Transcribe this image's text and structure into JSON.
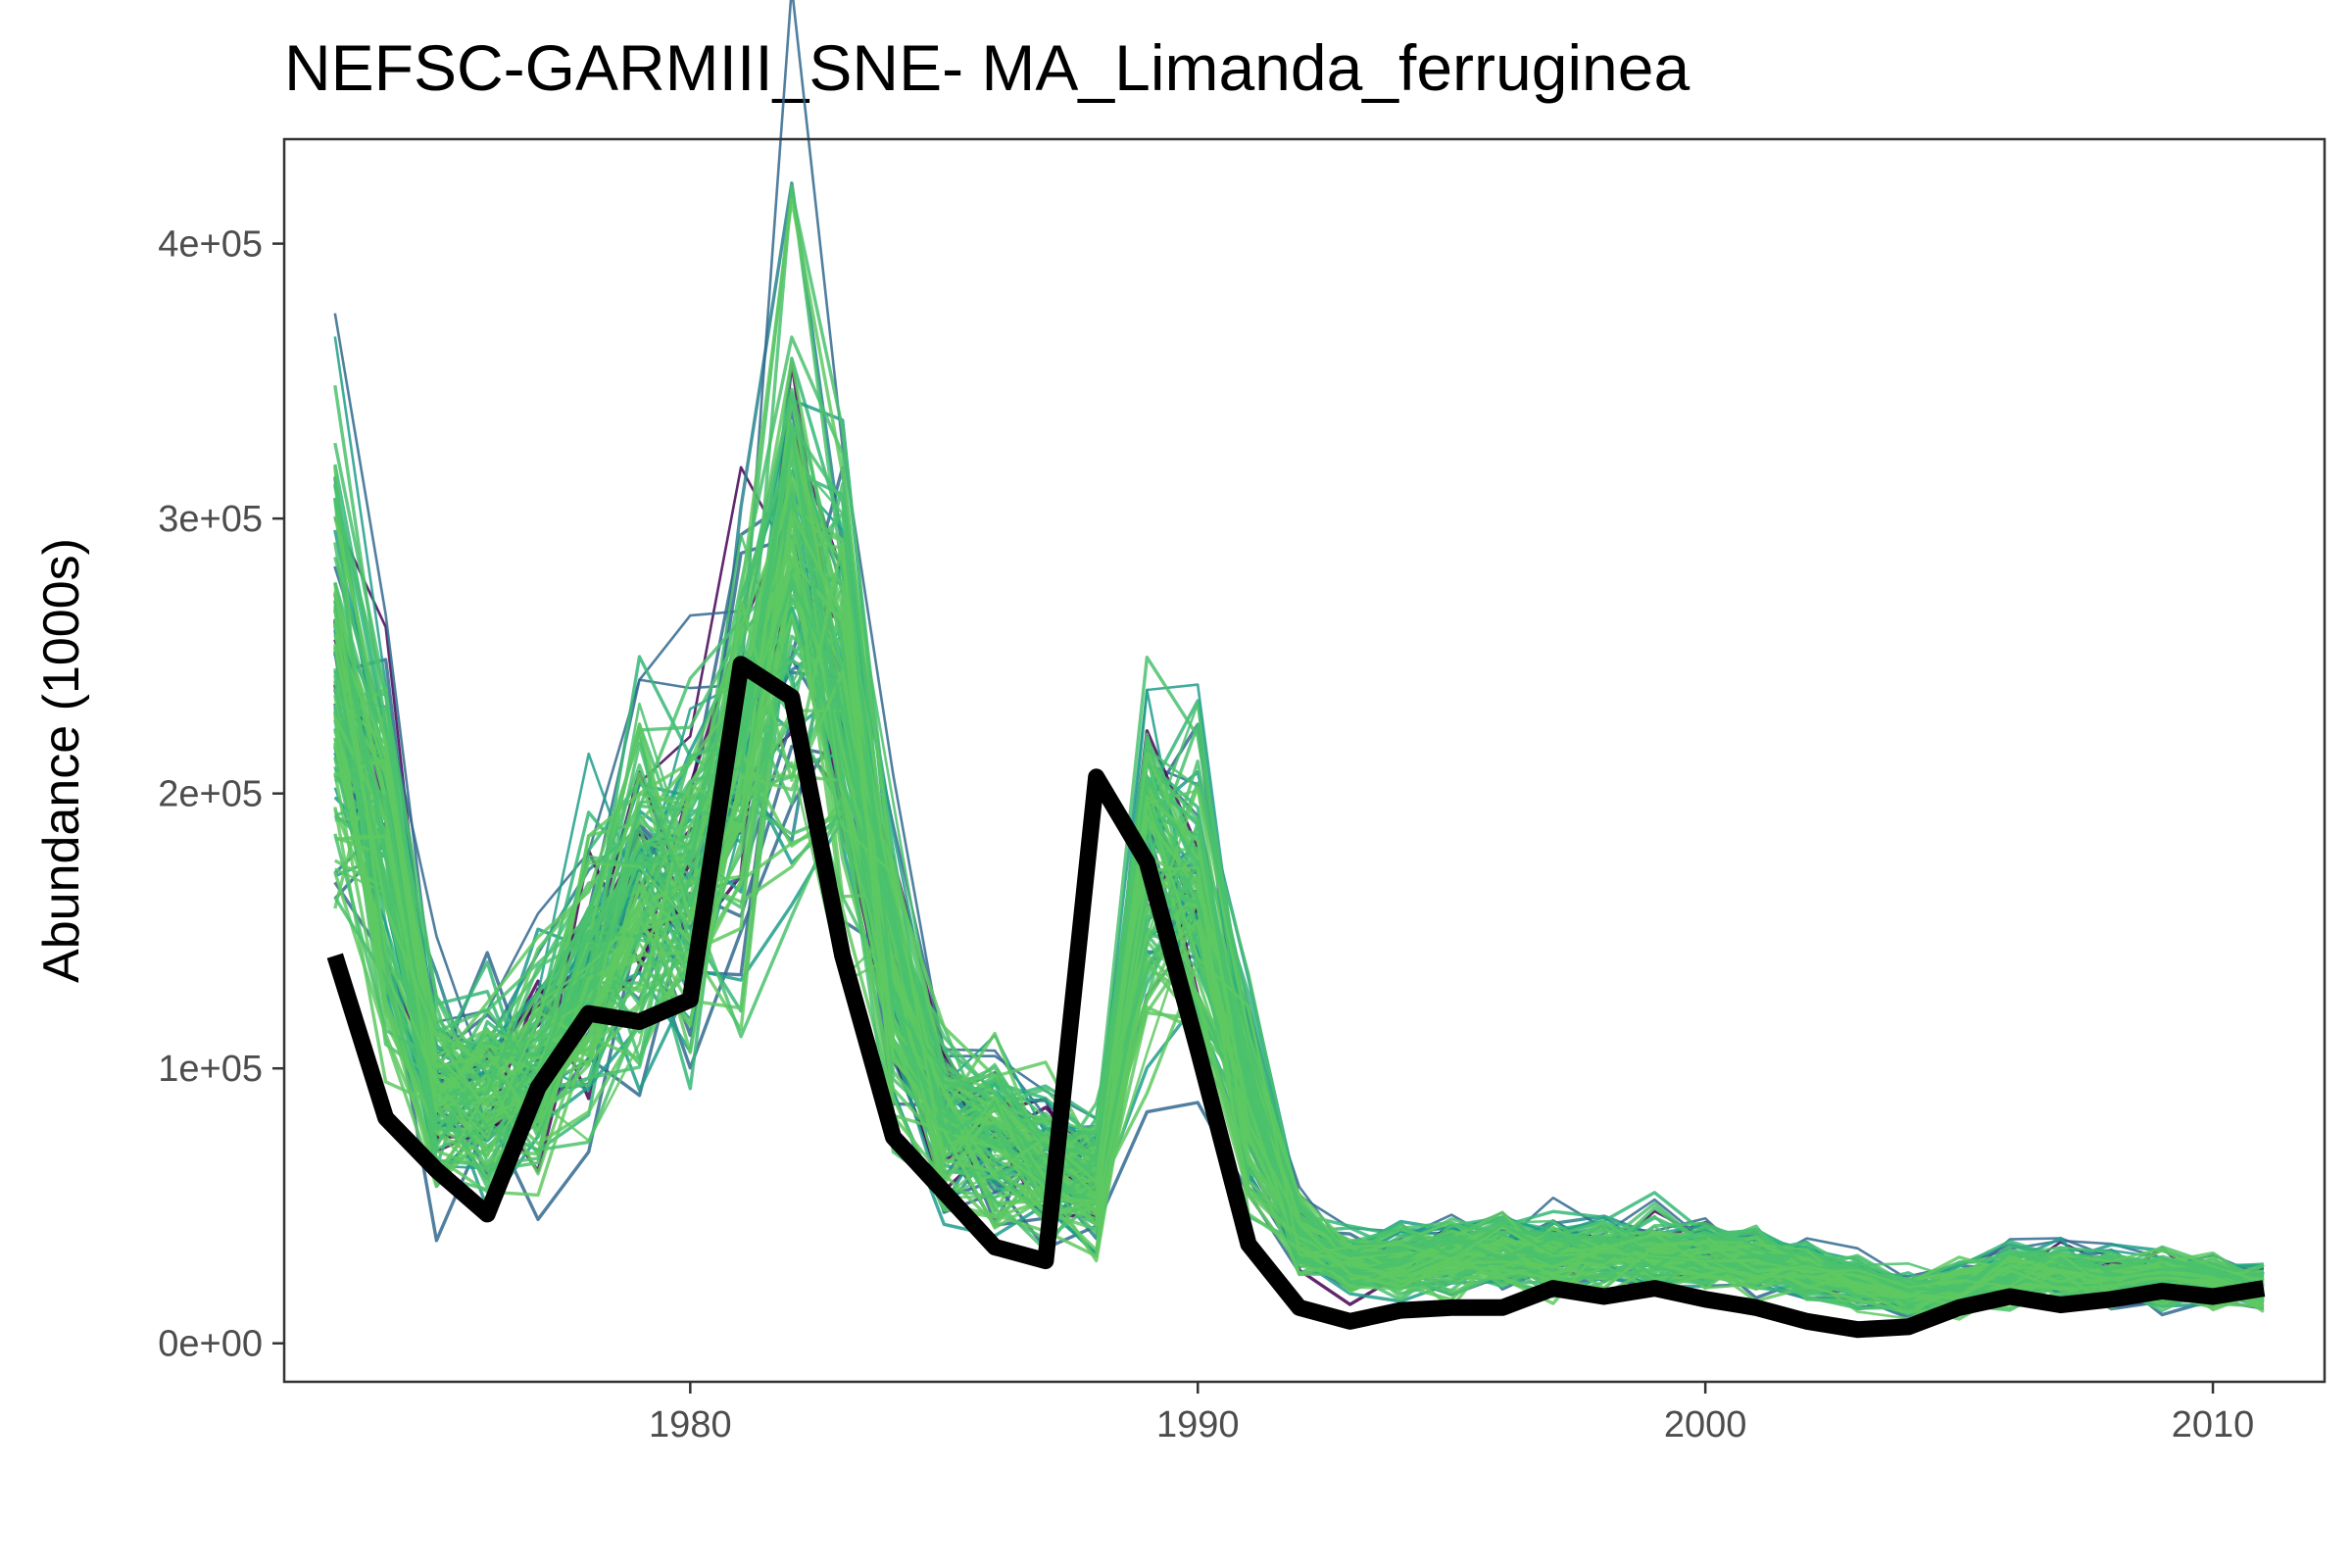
{
  "chart_data": {
    "type": "line",
    "title": "NEFSC-GARMIII_SNE- MA_Limanda_ferruginea",
    "xlabel": "",
    "ylabel": "Abundance (1000s)",
    "xlim": [
      1972.0,
      2012.2
    ],
    "ylim": [
      -14000,
      438000
    ],
    "x_ticks": [
      1980,
      1990,
      2000,
      2010
    ],
    "x_tick_labels": [
      "1980",
      "1990",
      "2000",
      "2010"
    ],
    "y_ticks": [
      0,
      100000,
      200000,
      300000,
      400000
    ],
    "y_tick_labels": [
      "0e+00",
      "1e+05",
      "2e+05",
      "3e+05",
      "4e+05"
    ],
    "grid": false,
    "legend": "none",
    "colors": {
      "observed": "#000000",
      "ensemble_palette": [
        "#440154",
        "#31688e",
        "#26828e",
        "#1f9e89",
        "#35b779",
        "#4ac16d",
        "#5ec962"
      ],
      "axis_text": "#4d4d4d",
      "panel_border": "#333333"
    },
    "x": [
      1973,
      1974,
      1975,
      1976,
      1977,
      1978,
      1979,
      1980,
      1981,
      1982,
      1983,
      1984,
      1985,
      1986,
      1987,
      1988,
      1989,
      1990,
      1991,
      1992,
      1993,
      1994,
      1995,
      1996,
      1997,
      1998,
      1999,
      2000,
      2001,
      2002,
      2003,
      2004,
      2005,
      2006,
      2007,
      2008,
      2009,
      2010,
      2011
    ],
    "series": [
      {
        "role": "observed",
        "values": [
          141000,
          82000,
          63000,
          47000,
          93000,
          120000,
          117000,
          125000,
          247000,
          235000,
          141000,
          75000,
          55000,
          35000,
          30000,
          206000,
          175000,
          107000,
          36000,
          13000,
          8000,
          12000,
          13000,
          13000,
          20000,
          17000,
          20000,
          16000,
          13000,
          8000,
          5000,
          6000,
          13000,
          17000,
          14000,
          16000,
          19000,
          17000,
          20000
        ]
      },
      {
        "role": "ensemble-mean",
        "values": [
          240000,
          180000,
          90000,
          95000,
          100000,
          135000,
          160000,
          170000,
          210000,
          280000,
          230000,
          130000,
          80000,
          75000,
          65000,
          60000,
          170000,
          160000,
          90000,
          40000,
          28000,
          30000,
          32000,
          33000,
          32000,
          32000,
          33000,
          32000,
          30000,
          26000,
          22000,
          18000,
          20000,
          25000,
          26000,
          24000,
          24000,
          22000,
          20000
        ]
      }
    ],
    "ensemble_runs": 120
  }
}
